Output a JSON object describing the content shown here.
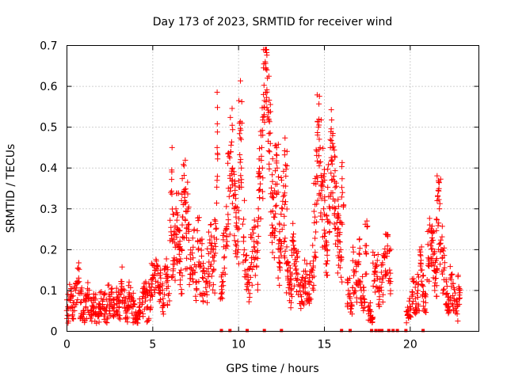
{
  "chart_data": {
    "type": "scatter",
    "title": "Day 173 of 2023, SRMTID for receiver wind",
    "xlabel": "GPS time / hours",
    "ylabel": "SRMTID / TECUs",
    "xlim": [
      0,
      24
    ],
    "ylim": [
      0,
      0.7
    ],
    "x_ticks": [
      0,
      5,
      10,
      15,
      20
    ],
    "x_tick_labels": [
      "0",
      "5",
      "10",
      "15",
      "20"
    ],
    "y_ticks": [
      0,
      0.1,
      0.2,
      0.3,
      0.4,
      0.5,
      0.6,
      0.7
    ],
    "y_tick_labels": [
      "0",
      "0.1",
      "0.2",
      "0.3",
      "0.4",
      "0.5",
      "0.6",
      "0.7"
    ],
    "grid": true,
    "marker": "+",
    "color": "#ff0000",
    "series": [
      {
        "name": "SRMTID",
        "x": [
          0.05,
          0.2,
          0.35,
          0.5,
          0.65,
          0.8,
          0.95,
          1.1,
          1.25,
          1.4,
          1.55,
          1.7,
          1.85,
          2.0,
          2.15,
          2.3,
          2.45,
          2.6,
          2.75,
          2.9,
          3.05,
          3.2,
          3.35,
          3.5,
          3.65,
          3.8,
          3.95,
          4.1,
          4.25,
          4.4,
          4.55,
          4.7,
          4.85,
          5.0,
          5.15,
          5.3,
          5.45,
          5.6,
          5.75,
          5.9,
          6.05,
          6.15,
          6.25,
          6.35,
          6.45,
          6.55,
          6.65,
          6.75,
          6.85,
          6.95,
          7.05,
          7.2,
          7.35,
          7.5,
          7.65,
          7.8,
          7.95,
          8.1,
          8.25,
          8.4,
          8.55,
          8.65,
          8.75,
          9.0,
          9.15,
          9.3,
          9.45,
          9.55,
          9.65,
          9.75,
          9.85,
          9.95,
          10.05,
          10.15,
          10.3,
          10.45,
          10.6,
          10.75,
          10.9,
          11.05,
          11.15,
          11.25,
          11.35,
          11.45,
          11.55,
          11.65,
          11.75,
          11.85,
          11.95,
          12.05,
          12.15,
          12.25,
          12.35,
          12.45,
          12.55,
          12.65,
          12.75,
          12.85,
          12.95,
          13.05,
          13.15,
          13.3,
          13.45,
          13.6,
          13.75,
          13.9,
          14.05,
          14.2,
          14.35,
          14.45,
          14.55,
          14.65,
          14.75,
          14.85,
          14.95,
          15.05,
          15.15,
          15.25,
          15.35,
          15.45,
          15.55,
          15.65,
          15.75,
          15.85,
          15.95,
          16.05,
          16.4,
          16.55,
          16.7,
          16.85,
          17.0,
          17.15,
          17.3,
          17.45,
          17.6,
          17.75,
          17.9,
          18.05,
          18.2,
          18.35,
          18.5,
          18.65,
          18.8,
          19.85,
          20.0,
          20.15,
          20.3,
          20.45,
          20.6,
          20.75,
          20.9,
          21.05,
          21.2,
          21.3,
          21.4,
          21.5,
          21.6,
          21.7,
          21.8,
          21.95,
          22.1,
          22.25,
          22.4,
          22.55,
          22.7,
          22.85
        ],
        "y": [
          0.06,
          0.08,
          0.05,
          0.1,
          0.12,
          0.07,
          0.05,
          0.06,
          0.08,
          0.05,
          0.07,
          0.06,
          0.04,
          0.08,
          0.06,
          0.05,
          0.09,
          0.07,
          0.05,
          0.08,
          0.06,
          0.11,
          0.07,
          0.05,
          0.09,
          0.06,
          0.04,
          0.03,
          0.05,
          0.07,
          0.09,
          0.06,
          0.1,
          0.13,
          0.15,
          0.12,
          0.1,
          0.08,
          0.14,
          0.11,
          0.34,
          0.22,
          0.18,
          0.3,
          0.25,
          0.2,
          0.15,
          0.28,
          0.32,
          0.24,
          0.3,
          0.14,
          0.18,
          0.12,
          0.2,
          0.16,
          0.13,
          0.12,
          0.19,
          0.21,
          0.15,
          0.27,
          0.45,
          0.11,
          0.18,
          0.25,
          0.33,
          0.44,
          0.4,
          0.3,
          0.28,
          0.22,
          0.51,
          0.47,
          0.23,
          0.14,
          0.12,
          0.18,
          0.22,
          0.16,
          0.3,
          0.38,
          0.45,
          0.58,
          0.66,
          0.64,
          0.52,
          0.46,
          0.33,
          0.28,
          0.36,
          0.4,
          0.18,
          0.22,
          0.3,
          0.26,
          0.38,
          0.15,
          0.12,
          0.1,
          0.22,
          0.16,
          0.14,
          0.09,
          0.11,
          0.13,
          0.09,
          0.12,
          0.16,
          0.28,
          0.38,
          0.5,
          0.45,
          0.36,
          0.3,
          0.24,
          0.2,
          0.33,
          0.45,
          0.42,
          0.38,
          0.3,
          0.25,
          0.22,
          0.2,
          0.34,
          0.1,
          0.07,
          0.15,
          0.12,
          0.17,
          0.1,
          0.08,
          0.21,
          0.05,
          0.03,
          0.14,
          0.16,
          0.1,
          0.12,
          0.18,
          0.19,
          0.15,
          0.04,
          0.06,
          0.09,
          0.08,
          0.1,
          0.16,
          0.11,
          0.07,
          0.18,
          0.21,
          0.24,
          0.16,
          0.13,
          0.33,
          0.3,
          0.2,
          0.15,
          0.09,
          0.06,
          0.11,
          0.08,
          0.05,
          0.1
        ],
        "spread": [
          0.04,
          0.04,
          0.04,
          0.05,
          0.05,
          0.04,
          0.03,
          0.04,
          0.04,
          0.03,
          0.04,
          0.04,
          0.03,
          0.04,
          0.04,
          0.03,
          0.05,
          0.04,
          0.03,
          0.04,
          0.04,
          0.05,
          0.04,
          0.03,
          0.04,
          0.04,
          0.03,
          0.02,
          0.03,
          0.04,
          0.05,
          0.04,
          0.05,
          0.05,
          0.06,
          0.05,
          0.05,
          0.04,
          0.06,
          0.05,
          0.12,
          0.1,
          0.08,
          0.1,
          0.09,
          0.08,
          0.06,
          0.1,
          0.1,
          0.09,
          0.1,
          0.06,
          0.07,
          0.05,
          0.08,
          0.07,
          0.06,
          0.05,
          0.08,
          0.08,
          0.06,
          0.1,
          0.15,
          0.04,
          0.07,
          0.08,
          0.12,
          0.12,
          0.12,
          0.1,
          0.1,
          0.08,
          0.16,
          0.12,
          0.1,
          0.06,
          0.05,
          0.07,
          0.08,
          0.06,
          0.1,
          0.12,
          0.14,
          0.12,
          0.1,
          0.1,
          0.12,
          0.14,
          0.12,
          0.1,
          0.12,
          0.1,
          0.07,
          0.08,
          0.1,
          0.09,
          0.1,
          0.06,
          0.05,
          0.05,
          0.08,
          0.06,
          0.06,
          0.04,
          0.05,
          0.06,
          0.04,
          0.05,
          0.06,
          0.1,
          0.12,
          0.14,
          0.12,
          0.12,
          0.1,
          0.09,
          0.08,
          0.1,
          0.12,
          0.12,
          0.1,
          0.1,
          0.09,
          0.08,
          0.08,
          0.1,
          0.04,
          0.03,
          0.06,
          0.05,
          0.06,
          0.04,
          0.03,
          0.07,
          0.03,
          0.02,
          0.06,
          0.06,
          0.04,
          0.05,
          0.07,
          0.07,
          0.06,
          0.02,
          0.03,
          0.04,
          0.04,
          0.05,
          0.06,
          0.05,
          0.03,
          0.07,
          0.07,
          0.08,
          0.06,
          0.05,
          0.1,
          0.1,
          0.07,
          0.06,
          0.04,
          0.03,
          0.05,
          0.04,
          0.03,
          0.04
        ]
      }
    ],
    "zero_markers_x": [
      9.0,
      9.5,
      10.5,
      11.5,
      12.5,
      16.0,
      16.5,
      17.75,
      18.0,
      18.2,
      18.3,
      18.35,
      18.75,
      19.0,
      19.25,
      19.75,
      20.75
    ]
  }
}
